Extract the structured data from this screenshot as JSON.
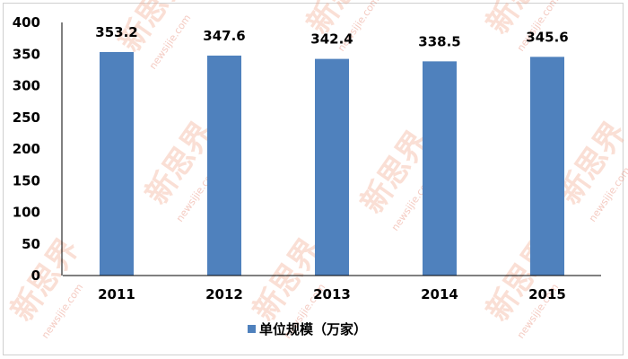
{
  "chart_data": {
    "type": "bar",
    "categories": [
      "2011",
      "2012",
      "2013",
      "2014",
      "2015"
    ],
    "series": [
      {
        "name": "单位规模（万家）",
        "values": [
          353.2,
          347.6,
          342.4,
          338.5,
          345.6
        ],
        "color": "#4f81bd"
      }
    ],
    "data_labels": [
      "353.2",
      "347.6",
      "342.4",
      "338.5",
      "345.6"
    ],
    "ylim": [
      0,
      400
    ],
    "yticks": [
      0,
      50,
      100,
      150,
      200,
      250,
      300,
      350,
      400
    ],
    "grid": false,
    "legend": "bottom",
    "title": "",
    "xlabel": "",
    "ylabel": ""
  },
  "watermark": {
    "text": "新思界",
    "url": "newsijie.com"
  }
}
